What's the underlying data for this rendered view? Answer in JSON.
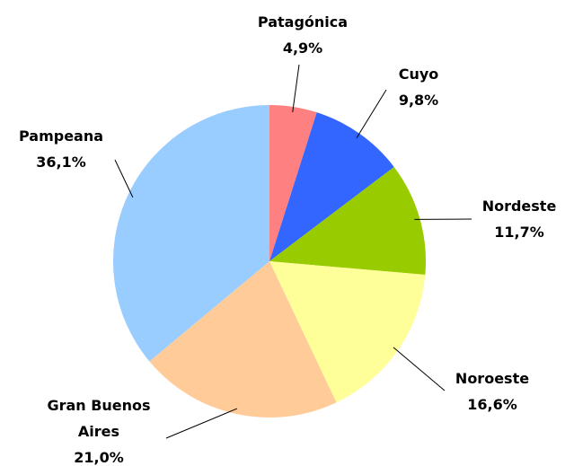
{
  "chart_data": {
    "type": "pie",
    "categories": [
      "Patagónica",
      "Cuyo",
      "Nordeste",
      "Noroeste",
      "Gran Buenos Aires",
      "Pampeana"
    ],
    "values": [
      4.9,
      9.8,
      11.7,
      16.6,
      21.0,
      36.1
    ],
    "value_labels": [
      "4,9%",
      "9,8%",
      "11,7%",
      "16,6%",
      "21,0%",
      "36,1%"
    ],
    "colors": [
      "#ff8080",
      "#3366ff",
      "#99cc00",
      "#ffff99",
      "#ffcc99",
      "#99ccff"
    ]
  }
}
